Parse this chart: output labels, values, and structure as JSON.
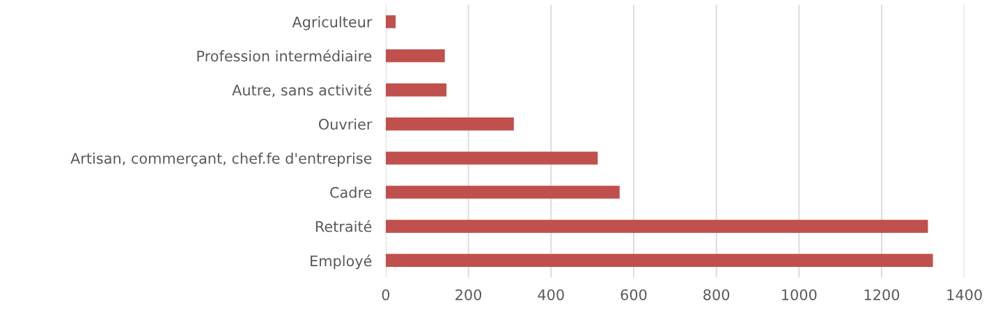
{
  "chart_data": {
    "type": "bar",
    "orientation": "horizontal",
    "categories": [
      "Agriculteur",
      "Profession intermédiaire",
      "Autre, sans activité",
      "Ouvrier",
      "Artisan, commerçant, chef.fe d'entreprise",
      "Cadre",
      "Retraité",
      "Employé"
    ],
    "values": [
      24,
      143,
      147,
      310,
      513,
      566,
      1312,
      1324
    ],
    "color": "#c0504d",
    "xlim": [
      0,
      1400
    ],
    "xticks": [
      0,
      200,
      400,
      600,
      800,
      1000,
      1200,
      1400
    ],
    "grid": "x",
    "legend": false
  }
}
